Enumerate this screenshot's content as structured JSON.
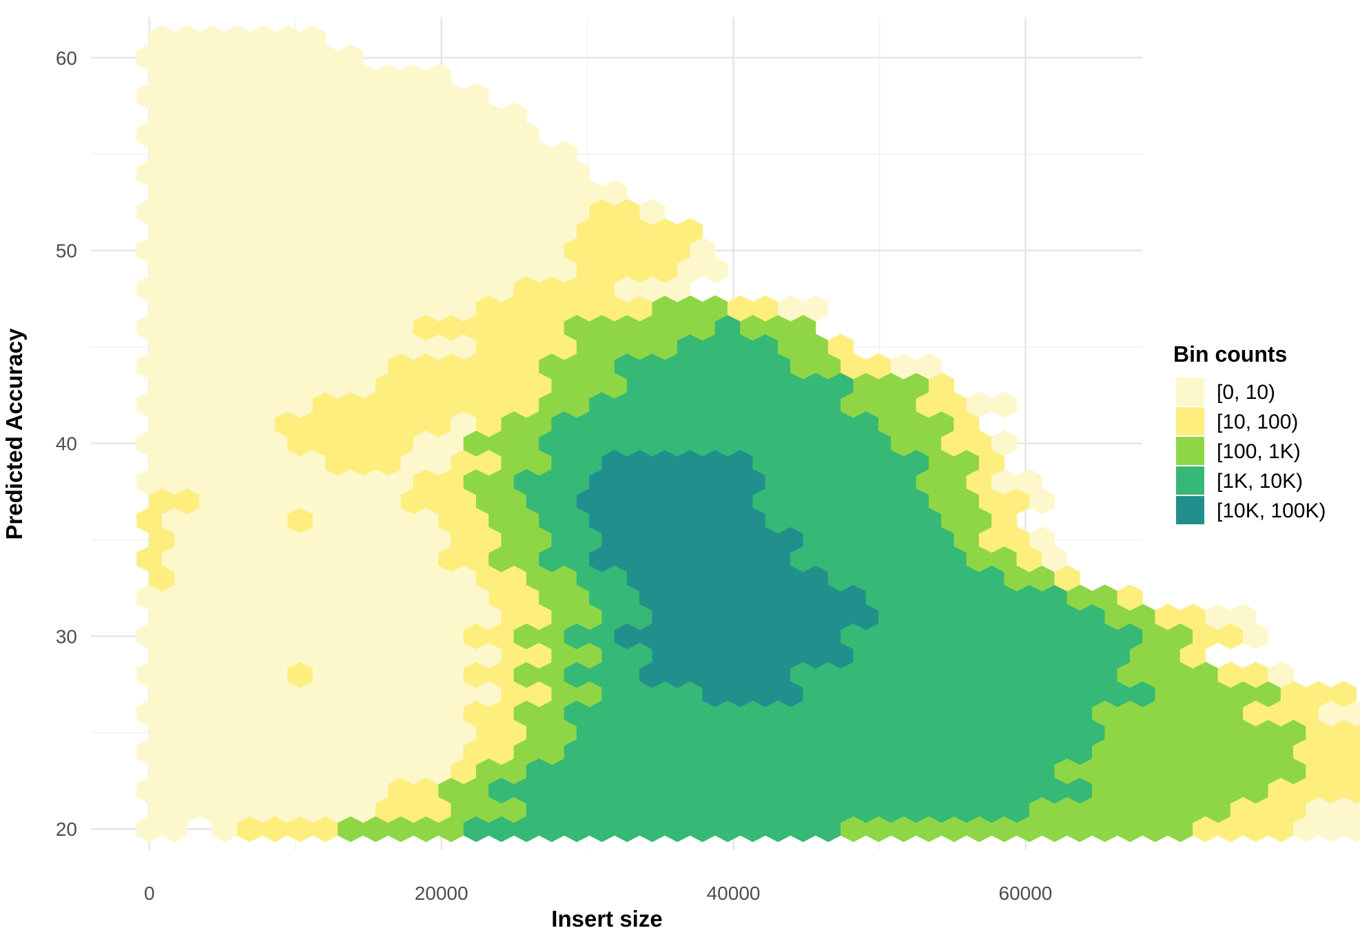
{
  "chart_data": {
    "type": "heatmap",
    "subtype": "hexbin",
    "xlabel": "Insert size",
    "ylabel": "Predicted Accuracy",
    "xlim": [
      -4000,
      68000
    ],
    "ylim": [
      18.9,
      62.1
    ],
    "x_ticks": [
      "0",
      "20000",
      "40000",
      "60000"
    ],
    "x_tick_values": [
      0,
      20000,
      40000,
      60000
    ],
    "y_ticks": [
      "20",
      "30",
      "40",
      "50",
      "60"
    ],
    "y_tick_values": [
      20,
      30,
      40,
      50,
      60
    ],
    "grid": true,
    "legend": {
      "title": "Bin counts",
      "placement": "right",
      "entries": [
        {
          "label": "[0, 10)",
          "color": "#FDF7CC"
        },
        {
          "label": "[10, 100)",
          "color": "#FDEE7E"
        },
        {
          "label": "[100, 1K)",
          "color": "#8ED645"
        },
        {
          "label": "[1K, 10K)",
          "color": "#36B877"
        },
        {
          "label": "[10K, 100K)",
          "color": "#21908D"
        }
      ]
    },
    "hex_grid": {
      "x0": 0,
      "dx": 1722,
      "y0": 20,
      "dy": 1
    },
    "rows": [
      {
        "row": 0,
        "start": 0,
        "bins": "00_01111222223333333333333332222222222222211110000"
      },
      {
        "row": 1,
        "start": 0,
        "bins": "0000000001112223333333333333333333322222222111000000_0"
      },
      {
        "row": 2,
        "start": 0,
        "bins": "000000000011223333333333333333333333332222222111100000"
      },
      {
        "row": 3,
        "start": 0,
        "bins": "00000000000012233333333333333333333322222222221110000"
      },
      {
        "row": 4,
        "start": 0,
        "bins": "0000000000000112233333333333333333333322222222111000"
      },
      {
        "row": 5,
        "start": 0,
        "bins": "000000000000011223333333333333333333332222222211100"
      },
      {
        "row": 6,
        "start": 0,
        "bins": "0000000000000112233333333333333333333322222211100"
      },
      {
        "row": 7,
        "start": 0,
        "bins": "000000000000001122333344443333333333333322222111"
      },
      {
        "row": 8,
        "start": 0,
        "bins": "0000001000000112233344444433333333333332222110"
      },
      {
        "row": 9,
        "start": 0,
        "bins": "000000000000001122334444444433333333333221"
      },
      {
        "row": 10,
        "start": 0,
        "bins": "000000000000011223344444444433333333333322110"
      },
      {
        "row": 11,
        "start": 0,
        "bins": "00000000000000112233444444444333333333221100"
      },
      {
        "row": 12,
        "start": 0,
        "bins": "0000000000000011223344444444433333333221"
      },
      {
        "row": 13,
        "start": 0,
        "bins": "1000000000000112233444444443333333221"
      },
      {
        "row": 14,
        "start": 0,
        "bins": "1000000000001122334444444433333332210"
      },
      {
        "row": 15,
        "start": 0,
        "bins": "100000000000112233444444443333332110"
      },
      {
        "row": 16,
        "start": 0,
        "bins": "10000010000011223344444443333333221"
      },
      {
        "row": 17,
        "start": 0,
        "bins": "110000000011122334444444333333322110"
      },
      {
        "row": 18,
        "start": 0,
        "bins": "000000000001122333444444433333322100"
      },
      {
        "row": 19,
        "start": 0,
        "bins": "0000000111001122334444443333333221"
      },
      {
        "row": 20,
        "start": 0,
        "bins": "00000011111002223333333333333322110"
      },
      {
        "row": 21,
        "start": 0,
        "bins": "000001111111012233333333333332221"
      },
      {
        "row": 22,
        "start": 0,
        "bins": "00000001111111112233333333332221100"
      },
      {
        "row": 23,
        "start": 0,
        "bins": "00000000011111112223333333332221"
      },
      {
        "row": 24,
        "start": 0,
        "bins": "00000000001111112223333333221100"
      },
      {
        "row": 25,
        "start": 0,
        "bins": "0000000000000111122223333221"
      },
      {
        "row": 26,
        "start": 0,
        "bins": "000000000001111112222223222"
      },
      {
        "row": 27,
        "start": 0,
        "bins": "000000000000011111112221100"
      },
      {
        "row": 28,
        "start": 0,
        "bins": "0000000000000001111000"
      },
      {
        "row": 29,
        "start": 0,
        "bins": "00000000000000000111100"
      },
      {
        "row": 30,
        "start": 0,
        "bins": "00000000000000000111110"
      },
      {
        "row": 31,
        "start": 0,
        "bins": "0000000000000000011111"
      },
      {
        "row": 32,
        "start": 0,
        "bins": "000000000000000000110"
      },
      {
        "row": 33,
        "start": 0,
        "bins": "0000000000000000000"
      },
      {
        "row": 34,
        "start": 0,
        "bins": "000000000000000000"
      },
      {
        "row": 35,
        "start": 0,
        "bins": "00000000000000000"
      },
      {
        "row": 36,
        "start": 0,
        "bins": "0000000000000000"
      },
      {
        "row": 37,
        "start": 0,
        "bins": "000000000000000"
      },
      {
        "row": 38,
        "start": 0,
        "bins": "00000000000000"
      },
      {
        "row": 39,
        "start": 0,
        "bins": "000000000000"
      },
      {
        "row": 40,
        "start": 0,
        "bins": "000000000"
      },
      {
        "row": 41,
        "start": 0,
        "bins": "0000000"
      }
    ]
  }
}
